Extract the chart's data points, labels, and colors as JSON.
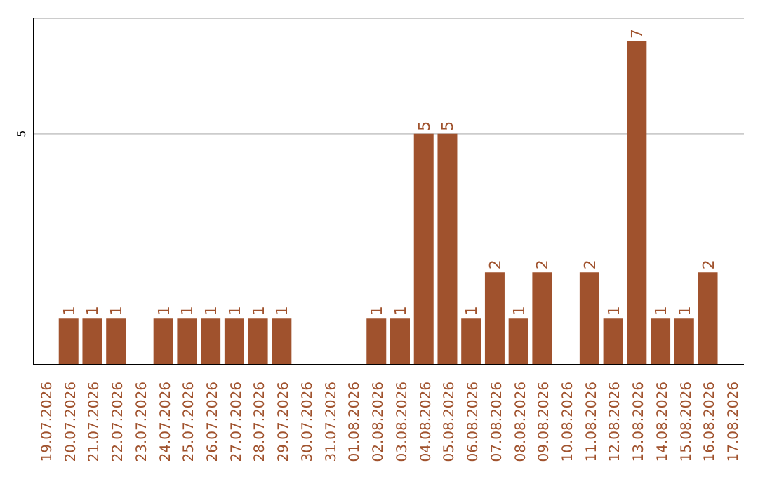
{
  "chart_data": {
    "type": "bar",
    "categories": [
      "19.07.2026",
      "20.07.2026",
      "21.07.2026",
      "22.07.2026",
      "23.07.2026",
      "24.07.2026",
      "25.07.2026",
      "26.07.2026",
      "27.07.2026",
      "28.07.2026",
      "29.07.2026",
      "30.07.2026",
      "31.07.2026",
      "01.08.2026",
      "02.08.2026",
      "03.08.2026",
      "04.08.2026",
      "05.08.2026",
      "06.08.2026",
      "07.08.2026",
      "08.08.2026",
      "09.08.2026",
      "10.08.2026",
      "11.08.2026",
      "12.08.2026",
      "13.08.2026",
      "14.08.2026",
      "15.08.2026",
      "16.08.2026",
      "17.08.2026"
    ],
    "values": [
      null,
      1,
      1,
      1,
      null,
      1,
      1,
      1,
      1,
      1,
      1,
      null,
      null,
      null,
      1,
      1,
      5,
      5,
      1,
      2,
      1,
      2,
      null,
      2,
      1,
      7,
      1,
      1,
      2,
      null
    ],
    "color": "#a0522d",
    "ylim": [
      0,
      7.5
    ],
    "yticks": [
      5
    ],
    "grid": "y",
    "data_labels": true
  }
}
